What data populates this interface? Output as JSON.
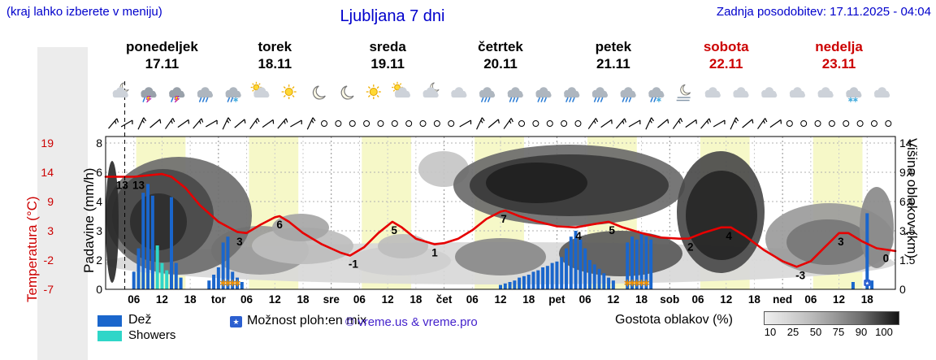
{
  "header": {
    "hint": "(kraj lahko izberete v meniju)",
    "title": "Ljubljana 7 dni",
    "updated": "Zadnja posodobitev: 17.11.2025 - 04:04"
  },
  "colors": {
    "header_blue": "#0000cc",
    "weekend_red": "#cc0000",
    "temp_red": "#e60000",
    "rain_blue": "#1a66cc",
    "shower_cyan": "#2fd6c8",
    "band_yellow": "#f6f8c8",
    "copyright_violet": "#4422cc",
    "frozen_orange": "#f09000",
    "chance_blue": "#2b5fd0"
  },
  "days": [
    {
      "name": "ponedeljek",
      "date": "17.11",
      "weekend": false
    },
    {
      "name": "torek",
      "date": "18.11",
      "weekend": false
    },
    {
      "name": "sreda",
      "date": "19.11",
      "weekend": false
    },
    {
      "name": "četrtek",
      "date": "20.11",
      "weekend": false
    },
    {
      "name": "petek",
      "date": "21.11",
      "weekend": false
    },
    {
      "name": "sobota",
      "date": "22.11",
      "weekend": true
    },
    {
      "name": "nedelja",
      "date": "23.11",
      "weekend": true
    }
  ],
  "axes": {
    "temp": {
      "label": "Temperatura (°C)",
      "ticks": [
        "19",
        "14",
        "9",
        "3",
        "-2",
        "-7"
      ]
    },
    "precip": {
      "label": "Padavine (mm/h)",
      "ticks": [
        "8",
        "6",
        "4",
        "3",
        "2",
        "0"
      ]
    },
    "cloud": {
      "label": "Višina oblakov (km)",
      "ticks": [
        "14",
        "9.0",
        "6.0",
        "3.5",
        "1.5",
        "0"
      ]
    }
  },
  "x_ticks": [
    {
      "label": "06",
      "h": 6
    },
    {
      "label": "12",
      "h": 12
    },
    {
      "label": "18",
      "h": 18
    },
    {
      "label": "tor",
      "h": 24,
      "day": true
    },
    {
      "label": "06",
      "h": 30
    },
    {
      "label": "12",
      "h": 36
    },
    {
      "label": "18",
      "h": 42
    },
    {
      "label": "sre",
      "h": 48,
      "day": true
    },
    {
      "label": "06",
      "h": 54
    },
    {
      "label": "12",
      "h": 60
    },
    {
      "label": "18",
      "h": 66
    },
    {
      "label": "čet",
      "h": 72,
      "day": true
    },
    {
      "label": "06",
      "h": 78
    },
    {
      "label": "12",
      "h": 84
    },
    {
      "label": "18",
      "h": 90
    },
    {
      "label": "pet",
      "h": 96,
      "day": true
    },
    {
      "label": "06",
      "h": 102
    },
    {
      "label": "12",
      "h": 108
    },
    {
      "label": "18",
      "h": 114
    },
    {
      "label": "sob",
      "h": 120,
      "day": true
    },
    {
      "label": "06",
      "h": 126
    },
    {
      "label": "12",
      "h": 132
    },
    {
      "label": "18",
      "h": 138
    },
    {
      "label": "ned",
      "h": 144,
      "day": true
    },
    {
      "label": "06",
      "h": 150
    },
    {
      "label": "12",
      "h": 156
    },
    {
      "label": "18",
      "h": 162
    }
  ],
  "legend": {
    "rain_label": "Dež",
    "showers_label": "Showers",
    "chance_label": "Možnost ploh",
    "frozen_label": "Frozen mix",
    "copyright": "© vreme.us & vreme.pro",
    "cloud_density_label": "Gostota oblakov (%)",
    "density_ticks": [
      "10",
      "25",
      "50",
      "75",
      "90",
      "100"
    ]
  },
  "chart_data": {
    "type": "meteogram",
    "x_unit": "hours from Monday 00:00, span 0-168 (7 days)",
    "now_hour": 4.07,
    "temp_axis_range": [
      -7,
      19
    ],
    "precip_axis_ticks_mm": [
      0,
      2,
      3,
      4,
      6,
      8
    ],
    "cloud_height_ticks_km": [
      0,
      1.5,
      3.5,
      6.0,
      9.0,
      14
    ],
    "temperature": {
      "series": [
        [
          0,
          13
        ],
        [
          6,
          13
        ],
        [
          12,
          13.5
        ],
        [
          14,
          13
        ],
        [
          17,
          11
        ],
        [
          20,
          8
        ],
        [
          24,
          5
        ],
        [
          28,
          3.2
        ],
        [
          30,
          3
        ],
        [
          33,
          4.5
        ],
        [
          36,
          5.8
        ],
        [
          37,
          6
        ],
        [
          39,
          5
        ],
        [
          42,
          3
        ],
        [
          46,
          1
        ],
        [
          50,
          -0.5
        ],
        [
          52,
          -1
        ],
        [
          55,
          0.5
        ],
        [
          58,
          3
        ],
        [
          61,
          5
        ],
        [
          63,
          4
        ],
        [
          66,
          2
        ],
        [
          70,
          1
        ],
        [
          72,
          1.2
        ],
        [
          75,
          2
        ],
        [
          78,
          3.5
        ],
        [
          81,
          5.5
        ],
        [
          84,
          6.8
        ],
        [
          85,
          7
        ],
        [
          88,
          6
        ],
        [
          92,
          5
        ],
        [
          96,
          4.2
        ],
        [
          100,
          4
        ],
        [
          104,
          4.6
        ],
        [
          107,
          5
        ],
        [
          110,
          4
        ],
        [
          114,
          3
        ],
        [
          118,
          2.2
        ],
        [
          122,
          2
        ],
        [
          124,
          2
        ],
        [
          127,
          3
        ],
        [
          131,
          4
        ],
        [
          133,
          4
        ],
        [
          136,
          2.5
        ],
        [
          140,
          0
        ],
        [
          144,
          -2
        ],
        [
          147,
          -3
        ],
        [
          150,
          -2
        ],
        [
          153,
          0.5
        ],
        [
          156,
          3
        ],
        [
          158,
          3
        ],
        [
          161,
          1.5
        ],
        [
          164,
          0.3
        ],
        [
          168,
          -0.2
        ]
      ],
      "labels": [
        [
          3.5,
          "13"
        ],
        [
          7,
          "13"
        ],
        [
          28.5,
          "3"
        ],
        [
          37,
          "6"
        ],
        [
          52.7,
          "-1"
        ],
        [
          61.4,
          "5"
        ],
        [
          70,
          "1"
        ],
        [
          84.7,
          "7"
        ],
        [
          100.6,
          "4"
        ],
        [
          107.7,
          "5"
        ],
        [
          124.4,
          "2"
        ],
        [
          132.6,
          "4"
        ],
        [
          147.8,
          "-3"
        ],
        [
          156.4,
          "3"
        ],
        [
          166,
          "0"
        ]
      ]
    },
    "precipitation": {
      "rain": [
        [
          6,
          1.2
        ],
        [
          7,
          2.4
        ],
        [
          8,
          4.6
        ],
        [
          9,
          5.2
        ],
        [
          10,
          4.4
        ],
        [
          14,
          4.3
        ],
        [
          15,
          1.8
        ],
        [
          16,
          0.8
        ],
        [
          22,
          0.6
        ],
        [
          23,
          1.0
        ],
        [
          24,
          1.5
        ],
        [
          25,
          2.6
        ],
        [
          26,
          2.8
        ],
        [
          27,
          1.2
        ],
        [
          28,
          0.8
        ],
        [
          29,
          0.5
        ],
        [
          84,
          0.3
        ],
        [
          85,
          0.4
        ],
        [
          86,
          0.5
        ],
        [
          87,
          0.6
        ],
        [
          88,
          0.8
        ],
        [
          89,
          0.9
        ],
        [
          90,
          1.0
        ],
        [
          91,
          1.2
        ],
        [
          92,
          1.3
        ],
        [
          93,
          1.5
        ],
        [
          94,
          1.6
        ],
        [
          95,
          1.8
        ],
        [
          96,
          1.9
        ],
        [
          97,
          2.1
        ],
        [
          98,
          2.4
        ],
        [
          99,
          2.8
        ],
        [
          100,
          3.0
        ],
        [
          101,
          2.7
        ],
        [
          102,
          2.4
        ],
        [
          103,
          2.0
        ],
        [
          104,
          1.7
        ],
        [
          105,
          1.4
        ],
        [
          106,
          1.1
        ],
        [
          107,
          0.8
        ],
        [
          108,
          0.6
        ],
        [
          111,
          2.6
        ],
        [
          112,
          2.8
        ],
        [
          113,
          2.7
        ],
        [
          114,
          2.9
        ],
        [
          115,
          2.8
        ],
        [
          116,
          2.7
        ],
        [
          159,
          0.5
        ],
        [
          162,
          3.6
        ],
        [
          163,
          0.6
        ]
      ],
      "showers": [
        [
          11,
          2.5
        ],
        [
          12,
          1.8
        ],
        [
          13,
          1.3
        ]
      ]
    },
    "frozen_mix_hours": [
      25,
      26,
      27,
      28,
      111,
      112,
      113,
      114,
      115
    ],
    "shower_chance_hours": [
      162
    ],
    "day_bands": {
      "start_hour": 6.5,
      "end_hour": 17
    },
    "cloud_blobs": [
      [
        0,
        130,
        972,
        52,
        "#d8d8d8"
      ],
      [
        130,
        110,
        120,
        60,
        "#9a9a9a"
      ],
      [
        0,
        25,
        180,
        145,
        "#6e6e6e"
      ],
      [
        8,
        40,
        125,
        115,
        "#4a4a4a"
      ],
      [
        30,
        70,
        70,
        70,
        "#2e2e2e"
      ],
      [
        0,
        30,
        16,
        150,
        "#2a2a2a"
      ],
      [
        180,
        112,
        125,
        45,
        "#bdbdbd"
      ],
      [
        205,
        95,
        70,
        34,
        "#a6a6a6"
      ],
      [
        300,
        135,
        125,
        36,
        "#cfcfcf"
      ],
      [
        335,
        120,
        62,
        30,
        "#bdbdbd"
      ],
      [
        385,
        18,
        62,
        44,
        "#c6c6c6"
      ],
      [
        428,
        10,
        285,
        100,
        "#6b6b6b"
      ],
      [
        448,
        22,
        245,
        76,
        "#3a3a3a"
      ],
      [
        468,
        32,
        125,
        50,
        "#1f1f1f"
      ],
      [
        430,
        125,
        112,
        46,
        "#8a8a8a"
      ],
      [
        558,
        116,
        152,
        56,
        "#5a5a5a"
      ],
      [
        703,
        18,
        108,
        150,
        "#4a4a4a"
      ],
      [
        714,
        42,
        88,
        110,
        "#262626"
      ],
      [
        812,
        82,
        158,
        88,
        "#9b9b9b"
      ],
      [
        838,
        102,
        102,
        56,
        "#777777"
      ],
      [
        928,
        62,
        42,
        100,
        "#8a8a8a"
      ]
    ],
    "weather_icons": [
      "moon-cloud",
      "thunder",
      "thunder",
      "rain",
      "rain-snow",
      "sun-cloud",
      "sun",
      "moon",
      "moon",
      "sun",
      "sun-cloud",
      "moon-cloud",
      "cloud",
      "rain",
      "rain",
      "rain",
      "rain",
      "rain",
      "rain",
      "rain-snow",
      "moon-fog",
      "cloud",
      "cloud",
      "cloud",
      "cloud",
      "cloud",
      "cloud-snow",
      "cloud"
    ],
    "wind": "bbbbbbbbbbbbbbboooooooooobbbbooooobbbbbbbbbbbbbboooooooo"
  }
}
